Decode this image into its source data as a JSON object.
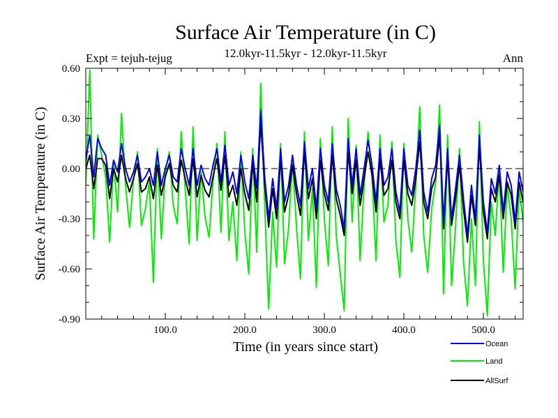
{
  "chart_data": {
    "type": "line",
    "title": "Surface Air Temperature (in C)",
    "subtitle_left": "Expt = tejuh-tejug",
    "subtitle_center": "12.0kyr-11.5kyr - 12.0kyr-11.5kyr",
    "subtitle_right": "Ann",
    "xlabel": "Time (in years since start)",
    "ylabel": "Surface Air Temperature (in C)",
    "xlim": [
      0,
      550
    ],
    "ylim": [
      -0.9,
      0.6
    ],
    "xticks": [
      100,
      200,
      300,
      400,
      500
    ],
    "xtick_labels": [
      "100.0",
      "200.0",
      "300.0",
      "400.0",
      "500.0"
    ],
    "yticks": [
      0.6,
      0.3,
      0.0,
      -0.3,
      -0.6,
      -0.9
    ],
    "ytick_labels": [
      "0.60",
      "0.30",
      "0.00",
      "-0.30",
      "-0.60",
      "-0.90"
    ],
    "reference_line": 0.0,
    "series": [
      {
        "name": "Land",
        "color": "#00ee00",
        "x": [
          0,
          5,
          10,
          15,
          20,
          25,
          30,
          35,
          40,
          45,
          50,
          55,
          60,
          65,
          70,
          75,
          80,
          85,
          90,
          95,
          100,
          105,
          110,
          115,
          120,
          125,
          130,
          135,
          140,
          145,
          150,
          155,
          160,
          165,
          170,
          175,
          180,
          185,
          190,
          195,
          200,
          205,
          210,
          215,
          220,
          225,
          230,
          235,
          240,
          245,
          250,
          255,
          260,
          265,
          270,
          275,
          280,
          285,
          290,
          295,
          300,
          305,
          310,
          315,
          320,
          325,
          330,
          335,
          340,
          345,
          350,
          355,
          360,
          365,
          370,
          375,
          380,
          385,
          390,
          395,
          400,
          405,
          410,
          415,
          420,
          425,
          430,
          435,
          440,
          445,
          450,
          455,
          460,
          465,
          470,
          475,
          480,
          485,
          490,
          495,
          500,
          505,
          510,
          515,
          520,
          525,
          530,
          535,
          540,
          545,
          550
        ],
        "values": [
          -0.1,
          0.59,
          -0.42,
          0.2,
          0.08,
          -0.05,
          -0.44,
          0.05,
          -0.26,
          0.33,
          -0.1,
          -0.35,
          -0.07,
          0.1,
          -0.34,
          -0.24,
          -0.08,
          -0.68,
          0.12,
          -0.42,
          -0.02,
          0.1,
          -0.22,
          -0.33,
          0.22,
          -0.12,
          -0.45,
          0.25,
          -0.43,
          -0.02,
          -0.29,
          -0.41,
          -0.08,
          0.15,
          -0.38,
          0.22,
          -0.43,
          -0.2,
          -0.55,
          0.1,
          -0.38,
          -0.63,
          0.12,
          -0.5,
          0.51,
          -0.22,
          -0.84,
          -0.26,
          -0.59,
          0.15,
          -0.57,
          -0.36,
          0.05,
          -0.35,
          -0.66,
          0.22,
          -0.43,
          -0.12,
          -0.71,
          0.18,
          -0.3,
          -0.58,
          0.25,
          -0.4,
          -0.63,
          -0.85,
          0.3,
          -0.32,
          0.14,
          -0.55,
          -0.1,
          0.22,
          -0.05,
          -0.55,
          0.2,
          -0.32,
          -0.22,
          0.16,
          -0.43,
          -0.65,
          0.15,
          -0.3,
          -0.5,
          -0.1,
          0.37,
          -0.4,
          -0.62,
          -0.24,
          -0.08,
          0.38,
          -0.75,
          0.2,
          -0.7,
          -0.35,
          0.12,
          -0.55,
          -0.82,
          -0.3,
          -0.7,
          0.28,
          -0.55,
          -0.88,
          -0.2,
          -0.4,
          0.0,
          -0.62,
          -0.1,
          -0.3,
          -0.72,
          -0.12,
          -0.32
        ]
      },
      {
        "name": "AllSurf",
        "color": "#000000",
        "x": [
          0,
          5,
          10,
          15,
          20,
          25,
          30,
          35,
          40,
          45,
          50,
          55,
          60,
          65,
          70,
          75,
          80,
          85,
          90,
          95,
          100,
          105,
          110,
          115,
          120,
          125,
          130,
          135,
          140,
          145,
          150,
          155,
          160,
          165,
          170,
          175,
          180,
          185,
          190,
          195,
          200,
          205,
          210,
          215,
          220,
          225,
          230,
          235,
          240,
          245,
          250,
          255,
          260,
          265,
          270,
          275,
          280,
          285,
          290,
          295,
          300,
          305,
          310,
          315,
          320,
          325,
          330,
          335,
          340,
          345,
          350,
          355,
          360,
          365,
          370,
          375,
          380,
          385,
          390,
          395,
          400,
          405,
          410,
          415,
          420,
          425,
          430,
          435,
          440,
          445,
          450,
          455,
          460,
          465,
          470,
          475,
          480,
          485,
          490,
          495,
          500,
          505,
          510,
          515,
          520,
          525,
          530,
          535,
          540,
          545,
          550
        ],
        "values": [
          0.0,
          0.08,
          -0.12,
          0.06,
          0.06,
          0.02,
          -0.18,
          0.0,
          -0.08,
          0.08,
          -0.06,
          -0.14,
          -0.06,
          0.03,
          -0.14,
          -0.12,
          -0.05,
          -0.18,
          0.02,
          -0.16,
          -0.05,
          0.03,
          -0.1,
          -0.14,
          0.05,
          -0.06,
          -0.16,
          0.06,
          -0.17,
          -0.04,
          -0.13,
          -0.17,
          -0.05,
          0.06,
          -0.13,
          0.08,
          -0.17,
          -0.1,
          -0.22,
          0.0,
          -0.15,
          -0.25,
          0.03,
          -0.2,
          0.28,
          -0.1,
          -0.35,
          -0.12,
          -0.3,
          0.06,
          -0.26,
          -0.16,
          0.02,
          -0.15,
          -0.28,
          0.1,
          -0.18,
          -0.06,
          -0.3,
          0.05,
          -0.15,
          -0.25,
          0.08,
          -0.18,
          -0.28,
          -0.4,
          0.1,
          -0.15,
          0.05,
          -0.22,
          -0.06,
          0.1,
          -0.04,
          -0.26,
          0.06,
          -0.16,
          -0.12,
          0.05,
          -0.2,
          -0.3,
          0.05,
          -0.15,
          -0.22,
          -0.06,
          0.16,
          -0.2,
          -0.3,
          -0.12,
          -0.05,
          0.2,
          -0.36,
          0.06,
          -0.34,
          -0.18,
          0.02,
          -0.24,
          -0.44,
          -0.16,
          -0.34,
          0.14,
          -0.26,
          -0.42,
          -0.12,
          -0.2,
          -0.04,
          -0.3,
          -0.08,
          -0.16,
          -0.36,
          -0.08,
          -0.2
        ]
      },
      {
        "name": "Ocean",
        "color": "#0000ee",
        "x": [
          0,
          5,
          10,
          15,
          20,
          25,
          30,
          35,
          40,
          45,
          50,
          55,
          60,
          65,
          70,
          75,
          80,
          85,
          90,
          95,
          100,
          105,
          110,
          115,
          120,
          125,
          130,
          135,
          140,
          145,
          150,
          155,
          160,
          165,
          170,
          175,
          180,
          185,
          190,
          195,
          200,
          205,
          210,
          215,
          220,
          225,
          230,
          235,
          240,
          245,
          250,
          255,
          260,
          265,
          270,
          275,
          280,
          285,
          290,
          295,
          300,
          305,
          310,
          315,
          320,
          325,
          330,
          335,
          340,
          345,
          350,
          355,
          360,
          365,
          370,
          375,
          380,
          385,
          390,
          395,
          400,
          405,
          410,
          415,
          420,
          425,
          430,
          435,
          440,
          445,
          450,
          455,
          460,
          465,
          470,
          475,
          480,
          485,
          490,
          495,
          500,
          505,
          510,
          515,
          520,
          525,
          530,
          535,
          540,
          545,
          550
        ],
        "values": [
          0.05,
          0.2,
          -0.05,
          0.18,
          0.12,
          0.08,
          -0.1,
          0.05,
          -0.02,
          0.15,
          0.0,
          -0.08,
          -0.02,
          0.08,
          -0.08,
          -0.05,
          0.0,
          -0.1,
          0.1,
          -0.1,
          0.0,
          0.08,
          -0.05,
          -0.08,
          0.12,
          0.0,
          -0.1,
          0.12,
          -0.1,
          0.02,
          -0.06,
          -0.1,
          0.02,
          0.12,
          -0.08,
          0.14,
          -0.1,
          -0.02,
          -0.15,
          0.08,
          -0.08,
          -0.18,
          0.08,
          -0.12,
          0.35,
          -0.05,
          -0.3,
          -0.06,
          -0.24,
          0.12,
          -0.2,
          -0.1,
          0.08,
          -0.1,
          -0.22,
          0.16,
          -0.12,
          0.0,
          -0.24,
          0.12,
          -0.1,
          -0.2,
          0.15,
          -0.12,
          -0.22,
          -0.36,
          0.18,
          -0.1,
          0.12,
          -0.16,
          0.0,
          0.17,
          0.02,
          -0.2,
          0.12,
          -0.1,
          -0.05,
          0.12,
          -0.14,
          -0.26,
          0.12,
          -0.1,
          -0.16,
          0.0,
          0.23,
          -0.14,
          -0.26,
          -0.06,
          0.02,
          0.26,
          -0.32,
          0.12,
          -0.3,
          -0.12,
          0.08,
          -0.18,
          -0.4,
          -0.1,
          -0.3,
          0.2,
          -0.2,
          -0.38,
          -0.06,
          -0.15,
          0.02,
          -0.26,
          -0.02,
          -0.1,
          -0.32,
          -0.02,
          -0.14
        ]
      }
    ],
    "legend": [
      {
        "name": "Ocean",
        "color": "#0000ee"
      },
      {
        "name": "Land",
        "color": "#00ee00"
      },
      {
        "name": "AllSurf",
        "color": "#000000"
      }
    ]
  }
}
